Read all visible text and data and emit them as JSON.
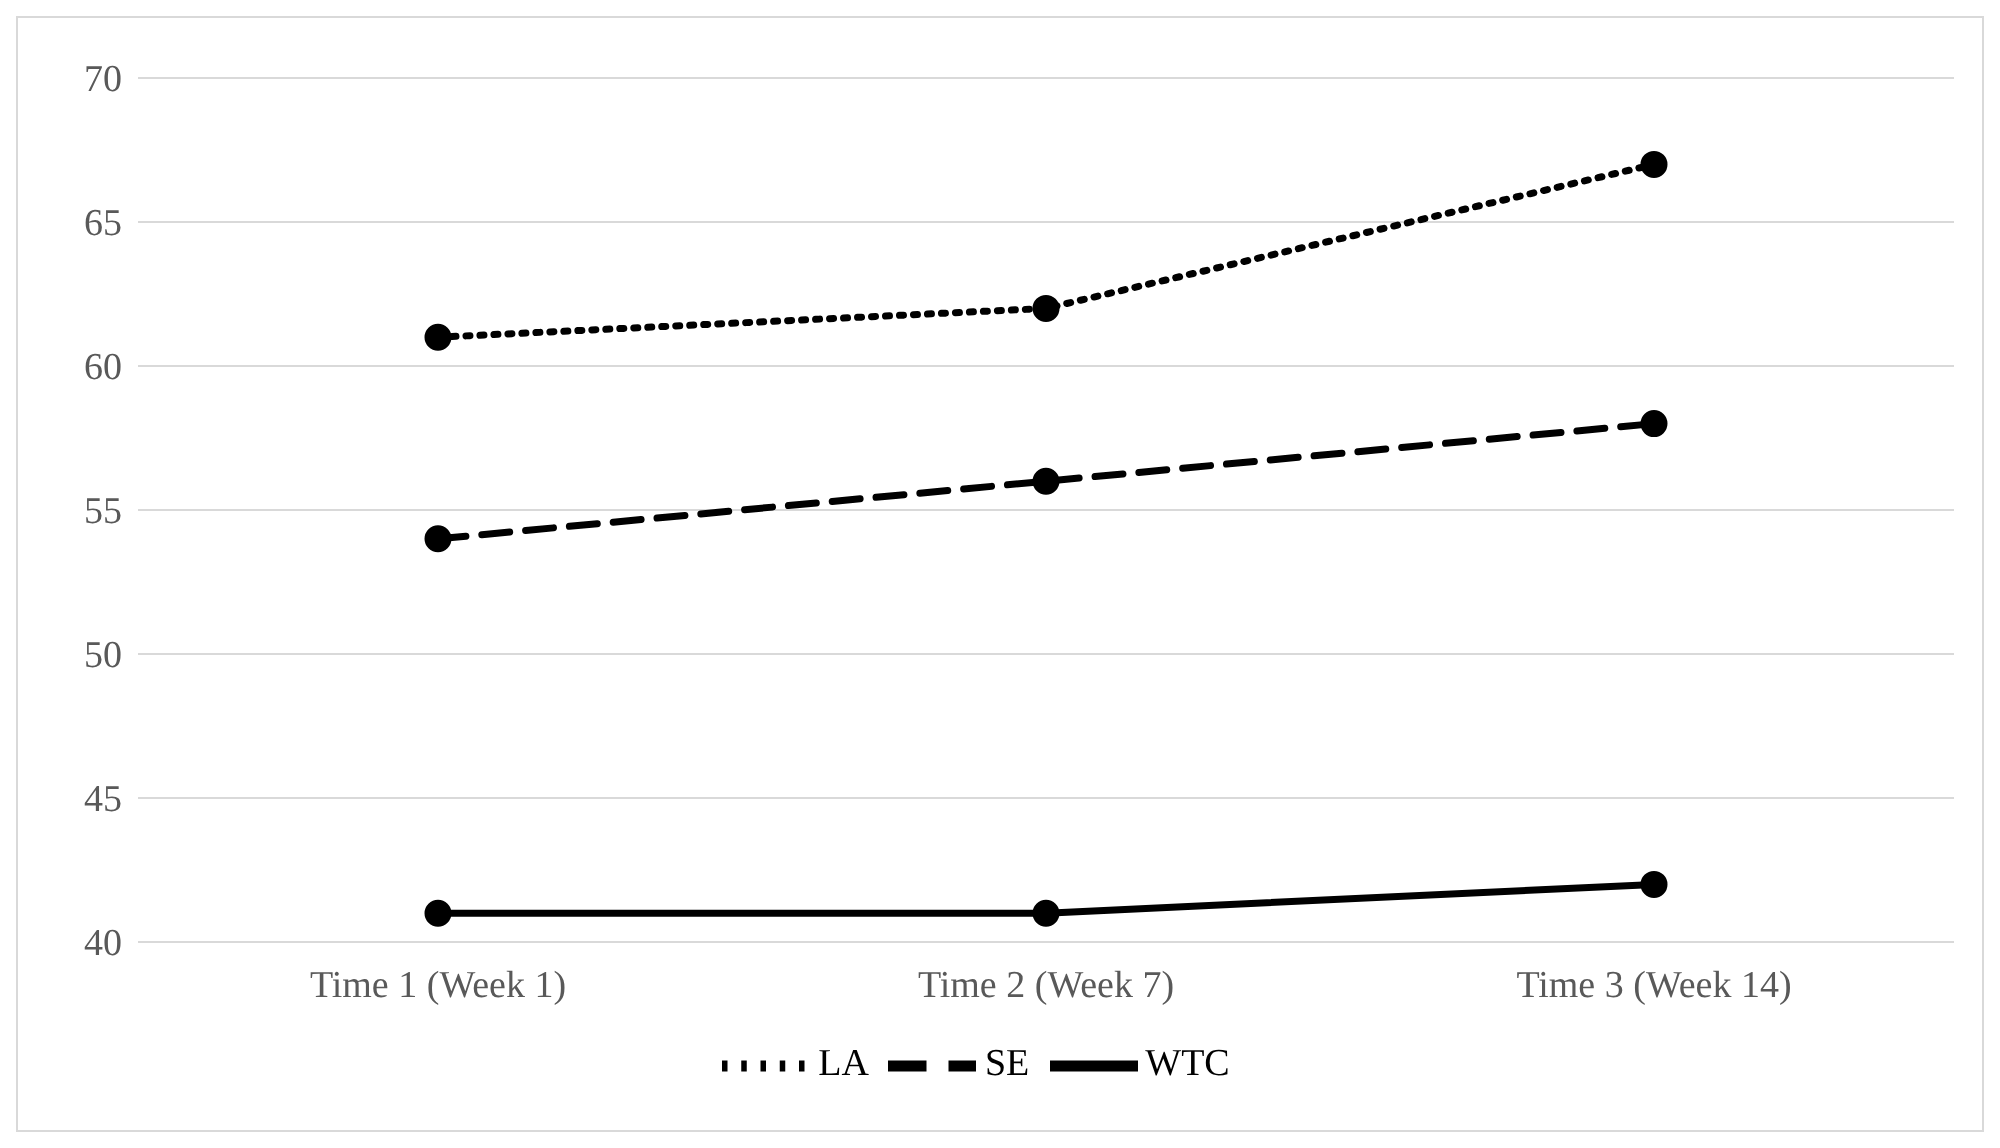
{
  "chart_data": {
    "type": "line",
    "categories": [
      "Time 1 (Week 1)",
      "Time 2 (Week 7)",
      "Time 3 (Week 14)"
    ],
    "series": [
      {
        "name": "LA",
        "color": "#000000",
        "values": [
          61,
          62,
          67
        ],
        "line_style": "dotted"
      },
      {
        "name": "SE",
        "color": "#000000",
        "values": [
          54,
          56,
          58
        ],
        "line_style": "dashed"
      },
      {
        "name": "WTC",
        "color": "#000000",
        "values": [
          41,
          41,
          42
        ],
        "line_style": "solid"
      }
    ],
    "ylim": [
      40,
      70
    ],
    "yticks": [
      40,
      45,
      50,
      55,
      60,
      65,
      70
    ],
    "grid": "y",
    "legend": "bottom",
    "marker": "circle"
  }
}
